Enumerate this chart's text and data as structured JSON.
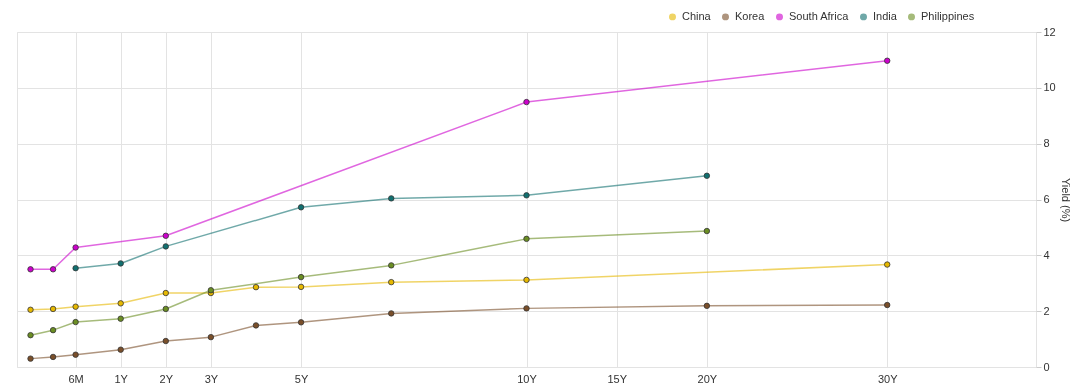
{
  "chart_data": {
    "type": "line",
    "ylabel": "Yield (%)",
    "categories": [
      null,
      null,
      "6M",
      null,
      "1Y",
      null,
      "2Y",
      null,
      "3Y",
      null,
      null,
      null,
      "5Y",
      null,
      null,
      null,
      null,
      null,
      null,
      null,
      null,
      null,
      "10Y",
      null,
      null,
      null,
      "15Y",
      null,
      null,
      null,
      "20Y",
      null,
      null,
      null,
      null,
      null,
      null,
      null,
      "30Y",
      null,
      null,
      null,
      null,
      null,
      null
    ],
    "ylim": [
      0,
      12
    ],
    "yticks": [
      0,
      2,
      4,
      6,
      8,
      10,
      12
    ],
    "grid": true,
    "legend": "top right",
    "marker": "circle",
    "line_style": "solid",
    "series": [
      {
        "name": "China",
        "color": "#e6b800",
        "values": [
          2.05,
          2.08,
          2.16,
          null,
          2.28,
          null,
          2.65,
          null,
          2.65,
          null,
          2.86,
          null,
          2.87,
          null,
          null,
          null,
          3.04,
          null,
          null,
          null,
          null,
          null,
          3.12,
          null,
          null,
          null,
          null,
          null,
          null,
          null,
          null,
          null,
          null,
          null,
          null,
          null,
          null,
          null,
          3.67,
          null,
          null,
          null,
          null,
          null,
          null
        ]
      },
      {
        "name": "Korea",
        "color": "#7a4f2a",
        "values": [
          0.3,
          0.36,
          0.44,
          null,
          0.62,
          null,
          0.93,
          null,
          1.07,
          null,
          1.49,
          null,
          1.6,
          null,
          null,
          null,
          1.92,
          null,
          null,
          null,
          null,
          null,
          2.1,
          null,
          null,
          null,
          null,
          null,
          null,
          null,
          2.19,
          null,
          null,
          null,
          null,
          null,
          null,
          null,
          2.22,
          null,
          null,
          null,
          null,
          null,
          null
        ]
      },
      {
        "name": "South Africa",
        "color": "#cc00cc",
        "values": [
          3.5,
          3.5,
          4.28,
          null,
          null,
          null,
          4.7,
          null,
          null,
          null,
          null,
          null,
          null,
          null,
          null,
          null,
          null,
          null,
          null,
          null,
          null,
          null,
          9.49,
          null,
          null,
          null,
          null,
          null,
          null,
          null,
          null,
          null,
          null,
          null,
          null,
          null,
          null,
          null,
          10.97,
          null,
          null,
          null,
          null,
          null,
          null
        ]
      },
      {
        "name": "India",
        "color": "#117070",
        "values": [
          null,
          null,
          3.54,
          null,
          3.71,
          null,
          4.32,
          null,
          null,
          null,
          null,
          null,
          5.72,
          null,
          null,
          null,
          6.04,
          null,
          null,
          null,
          null,
          null,
          6.15,
          null,
          null,
          null,
          null,
          null,
          null,
          null,
          6.85,
          null,
          null,
          null,
          null,
          null,
          null,
          null,
          null,
          null,
          null,
          null,
          null,
          null,
          null
        ]
      },
      {
        "name": "Philippines",
        "color": "#6b8e23",
        "values": [
          1.14,
          1.32,
          1.61,
          null,
          1.73,
          null,
          2.08,
          null,
          2.75,
          null,
          null,
          null,
          3.22,
          null,
          null,
          null,
          3.64,
          null,
          null,
          null,
          null,
          null,
          4.59,
          null,
          null,
          null,
          null,
          null,
          null,
          null,
          4.87,
          null,
          null,
          null,
          null,
          null,
          null,
          null,
          null,
          null,
          null,
          null,
          null,
          null,
          null
        ]
      }
    ]
  }
}
